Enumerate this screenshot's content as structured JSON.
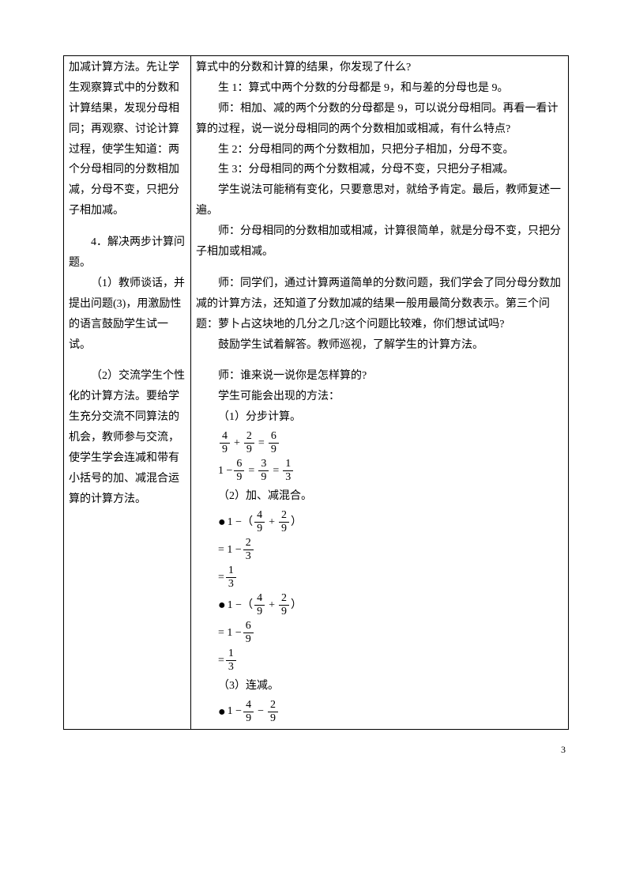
{
  "left": {
    "para1": "加减计算方法。先让学生观察算式中的分数和计算结果，发现分母相同；再观察、讨论计算过程，使学生知道：两个分母相同的分数相加减，分母不变，只把分子相加减。",
    "sec4_title": "4．解决两步计算问题。",
    "sec4_1": "（1）教师谈话，并提出问题(3)，用激励性的语言鼓励学生试一试。",
    "sec4_2": "（2）交流学生个性化的计算方法。要给学生充分交流不同算法的机会，教师参与交流，使学生学会连减和带有小括号的加、减混合运算的计算方法。"
  },
  "right": {
    "l1": "算式中的分数和计算的结果，你发现了什么?",
    "l2": "生 1：算式中两个分数的分母都是 9，和与差的分母也是 9。",
    "l3": "师：相加、减的两个分数的分母都是 9，可以说分母相同。再看一看计算的过程，说一说分母相同的两个分数相加或相减，有什么特点?",
    "l4": "生 2：分母相同的两个分数相加，只把分子相加，分母不变。",
    "l5": "生 3：分母相同的两个分数相减，分母不变，只把分子相减。",
    "l6": "学生说法可能稍有变化，只要意思对，就给予肯定。最后，教师复述一遍。",
    "l7": "师：分母相同的分数相加或相减，计算很简单，就是分母不变，只把分子相加或相减。",
    "l8": "师：同学们，通过计算两道简单的分数问题，我们学会了同分母分数加减的计算方法，还知道了分数加减的结果一般用最简分数表示。第三个问题：萝卜占这块地的几分之几?这个问题比较难，你们想试试吗?",
    "l9": "鼓励学生试着解答。教师巡视，了解学生的计算方法。",
    "l10": "师：谁来说一说你是怎样算的?",
    "l11": "学生可能会出现的方法：",
    "m1": "（1）分步计算。",
    "m2": "（2）加、减混合。",
    "m3": "（3）连减。"
  },
  "frac": {
    "f49": {
      "n": "4",
      "d": "9"
    },
    "f29": {
      "n": "2",
      "d": "9"
    },
    "f69": {
      "n": "6",
      "d": "9"
    },
    "f39": {
      "n": "3",
      "d": "9"
    },
    "f13": {
      "n": "1",
      "d": "3"
    },
    "f23": {
      "n": "2",
      "d": "3"
    }
  },
  "page_number": "3"
}
